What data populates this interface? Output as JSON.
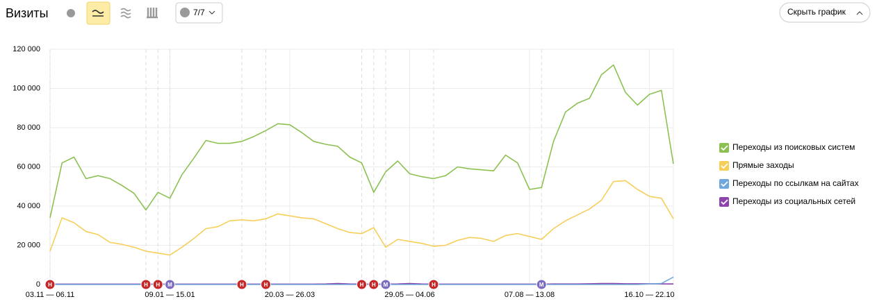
{
  "header": {
    "title": "Визиты",
    "counter": "7/7",
    "hide_button": "Скрыть график"
  },
  "chart_data": {
    "type": "line",
    "categories": [
      "03.11 — 06.11",
      null,
      null,
      null,
      null,
      null,
      null,
      null,
      null,
      null,
      "09.01 — 15.01",
      null,
      null,
      null,
      null,
      null,
      null,
      null,
      null,
      null,
      "20.03 — 26.03",
      null,
      null,
      null,
      null,
      null,
      null,
      null,
      null,
      null,
      "29.05 — 04.06",
      null,
      null,
      null,
      null,
      null,
      null,
      null,
      null,
      null,
      "07.08 — 13.08",
      null,
      null,
      null,
      null,
      null,
      null,
      null,
      null,
      null,
      "16.10 — 22.10",
      null,
      null
    ],
    "series": [
      {
        "name": "Переходы из поисковых систем",
        "color": "#8cc152",
        "values": [
          34000,
          62000,
          65000,
          54000,
          55500,
          54000,
          50500,
          46500,
          38000,
          47000,
          44000,
          56000,
          64500,
          73500,
          72000,
          72000,
          73000,
          75500,
          78500,
          82000,
          81500,
          77500,
          73000,
          71500,
          70500,
          65000,
          62000,
          47000,
          57500,
          63000,
          56500,
          55000,
          54000,
          55500,
          60000,
          59000,
          58500,
          58000,
          66000,
          62000,
          48500,
          49500,
          73000,
          88000,
          92500,
          95000,
          107000,
          112000,
          98000,
          91500,
          97000,
          99000,
          61500
        ]
      },
      {
        "name": "Прямые заходы",
        "color": "#f6cf5a",
        "values": [
          17000,
          34000,
          31500,
          27000,
          25500,
          21500,
          20500,
          19000,
          17000,
          16000,
          15000,
          19000,
          23500,
          28500,
          29500,
          32500,
          33000,
          32500,
          33500,
          36000,
          35000,
          34000,
          33500,
          31000,
          28500,
          26500,
          26000,
          29000,
          19000,
          23000,
          22000,
          21000,
          19500,
          20000,
          22500,
          24000,
          23500,
          22000,
          25000,
          26000,
          24500,
          23000,
          28500,
          32500,
          35500,
          38500,
          43000,
          52500,
          53000,
          48500,
          45000,
          44000,
          33500
        ]
      },
      {
        "name": "Переходы по ссылкам на сайтах",
        "color": "#6fa8dc",
        "values": [
          0,
          0,
          0,
          0,
          0,
          0,
          0,
          0,
          0,
          0,
          0,
          0,
          0,
          0,
          0,
          0,
          0,
          0,
          0,
          0,
          0,
          0,
          0,
          0,
          0,
          0,
          0,
          0,
          0,
          0,
          0,
          0,
          0,
          0,
          0,
          0,
          0,
          0,
          0,
          0,
          0,
          0,
          0,
          0,
          0,
          0,
          0,
          0,
          0,
          0,
          300,
          500,
          3800
        ]
      },
      {
        "name": "Переходы из социальных сетей",
        "color": "#8e44ad",
        "values": [
          200,
          200,
          200,
          200,
          200,
          200,
          200,
          200,
          200,
          200,
          200,
          200,
          200,
          200,
          200,
          200,
          200,
          200,
          200,
          200,
          200,
          200,
          200,
          300,
          500,
          300,
          200,
          200,
          200,
          300,
          500,
          300,
          200,
          200,
          200,
          200,
          200,
          200,
          200,
          200,
          200,
          200,
          300,
          300,
          300,
          400,
          500,
          500,
          400,
          400,
          400,
          300,
          300
        ]
      }
    ],
    "ylim": [
      0,
      120000
    ],
    "yticks": [
      0,
      {
        "value": 20000,
        "label": "20 000"
      },
      {
        "value": 40000,
        "label": "40 000"
      },
      {
        "value": 60000,
        "label": "60 000"
      },
      {
        "value": 80000,
        "label": "80 000"
      },
      {
        "value": 100000,
        "label": "100 000"
      },
      {
        "value": 120000,
        "label": "120 000"
      }
    ],
    "grid": true,
    "legend": "right",
    "annotations": [
      {
        "x": 0,
        "label": "Н"
      },
      {
        "x": 8,
        "label": "Н"
      },
      {
        "x": 9,
        "label": "Н"
      },
      {
        "x": 10,
        "label": "М"
      },
      {
        "x": 16,
        "label": "Н"
      },
      {
        "x": 18,
        "label": "Н"
      },
      {
        "x": 26,
        "label": "Н"
      },
      {
        "x": 27,
        "label": "Н"
      },
      {
        "x": 28,
        "label": "М"
      },
      {
        "x": 32,
        "label": "Н"
      },
      {
        "x": 41,
        "label": "М"
      }
    ]
  }
}
